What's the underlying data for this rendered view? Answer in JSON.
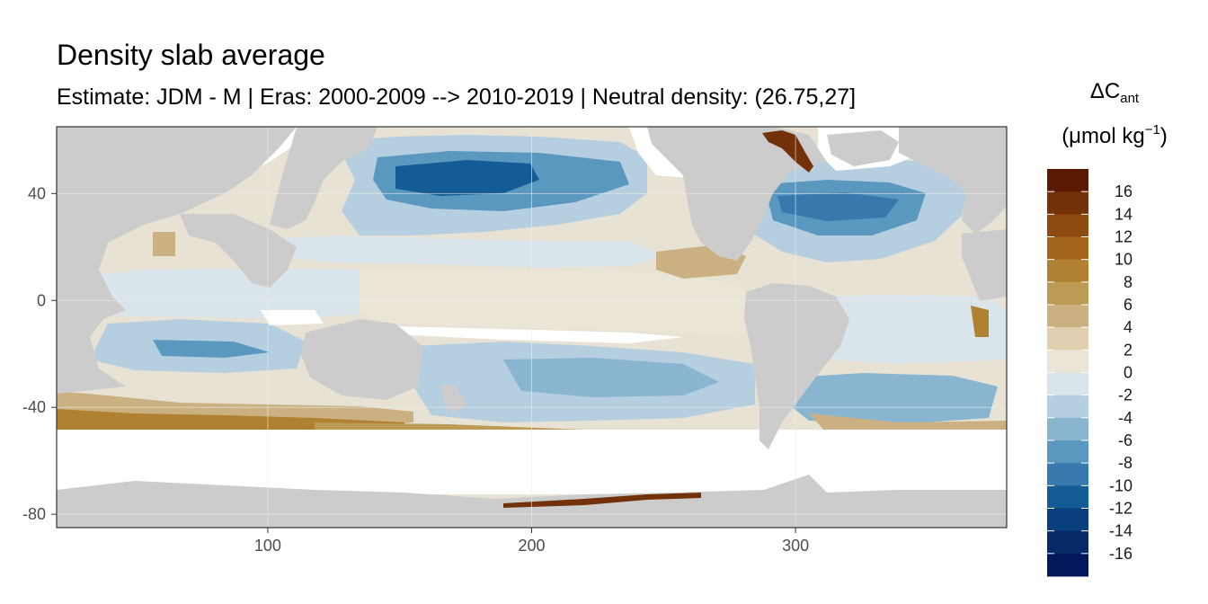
{
  "title": "Density slab average",
  "subtitle": "Estimate: JDM - M | Eras: 2000-2009 --> 2010-2019 | Neutral density: (26.75,27]",
  "legend": {
    "title_symbol": "ΔC",
    "title_subscript": "ant",
    "unit_base": "(μmol kg",
    "unit_exponent": "−1",
    "unit_close": ")",
    "labels": [
      "16",
      "14",
      "12",
      "10",
      "8",
      "6",
      "4",
      "2",
      "0",
      "-2",
      "-4",
      "-6",
      "-8",
      "-10",
      "-12",
      "-14",
      "-16"
    ],
    "colors": [
      "#5a1a02",
      "#73310a",
      "#8c4a0f",
      "#a4661b",
      "#b08130",
      "#bd9b55",
      "#cbb182",
      "#e0cfae",
      "#ebe5d8",
      "#dae4eb",
      "#b6cfe0",
      "#89b5d1",
      "#5b98c0",
      "#3779ac",
      "#135c95",
      "#083f7c",
      "#062a66",
      "#03175a"
    ]
  },
  "map": {
    "x_axis": {
      "range": [
        20,
        380
      ],
      "ticks": [
        100,
        200,
        300
      ]
    },
    "y_axis": {
      "range": [
        -85,
        65
      ],
      "ticks": [
        40,
        0,
        -40,
        -80
      ]
    },
    "land_color": "#cccccc",
    "panel_border_color": "#333333",
    "grid_color": "#ebebeb"
  }
}
